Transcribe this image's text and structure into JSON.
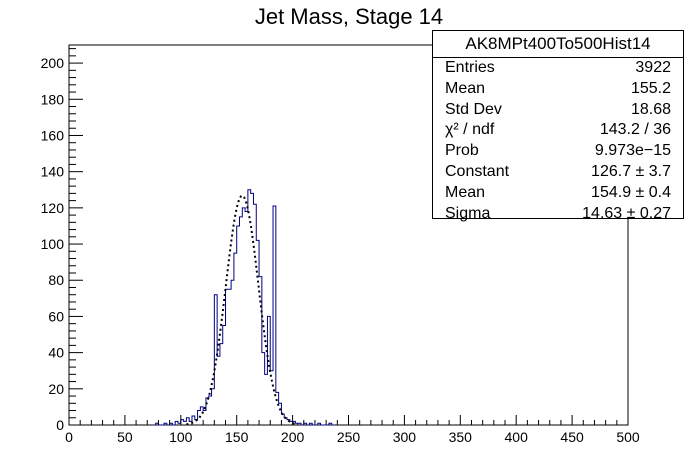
{
  "chart_data": {
    "type": "histogram",
    "title": "Jet Mass, Stage 14",
    "xlabel": "",
    "ylabel": "",
    "xlim": [
      0,
      500
    ],
    "ylim": [
      0,
      210
    ],
    "x_ticks": [
      "0",
      "50",
      "100",
      "150",
      "200",
      "250",
      "300",
      "350",
      "400",
      "450",
      "500"
    ],
    "y_ticks": [
      "0",
      "20",
      "40",
      "60",
      "80",
      "100",
      "120",
      "140",
      "160",
      "180",
      "200"
    ],
    "bin_width": 2.5,
    "bins": [
      {
        "x": 77.5,
        "y": 1
      },
      {
        "x": 85,
        "y": 1
      },
      {
        "x": 90,
        "y": 1
      },
      {
        "x": 95,
        "y": 2
      },
      {
        "x": 97.5,
        "y": 1
      },
      {
        "x": 100,
        "y": 3
      },
      {
        "x": 102.5,
        "y": 2
      },
      {
        "x": 105,
        "y": 4
      },
      {
        "x": 107.5,
        "y": 2
      },
      {
        "x": 110,
        "y": 5
      },
      {
        "x": 112.5,
        "y": 3
      },
      {
        "x": 115,
        "y": 8
      },
      {
        "x": 117.5,
        "y": 10
      },
      {
        "x": 120,
        "y": 8
      },
      {
        "x": 122.5,
        "y": 15
      },
      {
        "x": 125,
        "y": 16
      },
      {
        "x": 127.5,
        "y": 20
      },
      {
        "x": 130,
        "y": 72
      },
      {
        "x": 132.5,
        "y": 38
      },
      {
        "x": 135,
        "y": 45
      },
      {
        "x": 137.5,
        "y": 55
      },
      {
        "x": 140,
        "y": 75
      },
      {
        "x": 142.5,
        "y": 75
      },
      {
        "x": 145,
        "y": 80
      },
      {
        "x": 147.5,
        "y": 95
      },
      {
        "x": 150,
        "y": 110
      },
      {
        "x": 152.5,
        "y": 115
      },
      {
        "x": 155,
        "y": 120
      },
      {
        "x": 157.5,
        "y": 118
      },
      {
        "x": 160,
        "y": 130
      },
      {
        "x": 162.5,
        "y": 128
      },
      {
        "x": 165,
        "y": 122
      },
      {
        "x": 167.5,
        "y": 102
      },
      {
        "x": 170,
        "y": 82
      },
      {
        "x": 172.5,
        "y": 40
      },
      {
        "x": 175,
        "y": 28
      },
      {
        "x": 177.5,
        "y": 60
      },
      {
        "x": 180,
        "y": 30
      },
      {
        "x": 182.5,
        "y": 121
      },
      {
        "x": 185,
        "y": 18
      },
      {
        "x": 187.5,
        "y": 12
      },
      {
        "x": 190,
        "y": 6
      },
      {
        "x": 192.5,
        "y": 4
      },
      {
        "x": 195,
        "y": 3
      },
      {
        "x": 197.5,
        "y": 2
      },
      {
        "x": 200,
        "y": 2
      },
      {
        "x": 202.5,
        "y": 1
      },
      {
        "x": 205,
        "y": 1
      },
      {
        "x": 210,
        "y": 1
      },
      {
        "x": 215,
        "y": 1
      },
      {
        "x": 222.5,
        "y": 1
      },
      {
        "x": 232.5,
        "y": 1
      }
    ],
    "fit": {
      "function": "gaus",
      "constant": 126.7,
      "mean": 154.9,
      "sigma": 14.63,
      "range": [
        105,
        205
      ]
    },
    "stats": {
      "name": "AK8MPt400To500Hist14",
      "rows": [
        {
          "label": "Entries",
          "value": "3922"
        },
        {
          "label": "Mean",
          "value": "155.2"
        },
        {
          "label": "Std Dev",
          "value": "18.68"
        },
        {
          "label": "χ² / ndf",
          "value": "143.2 / 36"
        },
        {
          "label": "Prob",
          "value": "9.973e−15"
        },
        {
          "label": "Constant",
          "value": "126.7 ± 3.7"
        },
        {
          "label": "Mean",
          "value": "154.9 ± 0.4"
        },
        {
          "label": "Sigma",
          "value": "14.63 ± 0.27"
        }
      ]
    },
    "colors": {
      "histogram": "#000080",
      "fit": "#000000"
    },
    "grid": false,
    "legend": "top-right"
  }
}
